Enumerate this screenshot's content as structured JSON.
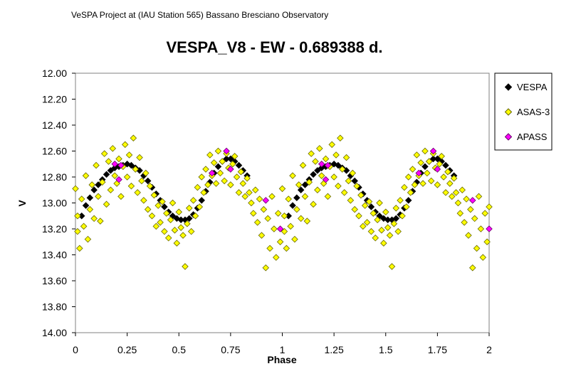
{
  "header": {
    "project": "VeSPA Project at (IAU Station 565) Bassano Bresciano Observatory"
  },
  "chart_data": {
    "type": "scatter",
    "title": "VESPA_V8 - EW - 0.689388 d.",
    "xlabel": "Phase",
    "ylabel": "V",
    "xlim": [
      0,
      2
    ],
    "ylim": [
      12.0,
      14.0
    ],
    "y_inverted": true,
    "x_ticks": [
      "0",
      "0.25",
      "0.5",
      "0.75",
      "1",
      "1.25",
      "1.5",
      "1.75",
      "2"
    ],
    "x_tick_values": [
      0,
      0.25,
      0.5,
      0.75,
      1,
      1.25,
      1.5,
      1.75,
      2
    ],
    "y_ticks": [
      "12.00",
      "12.20",
      "12.40",
      "12.60",
      "12.80",
      "13.00",
      "13.20",
      "13.40",
      "13.60",
      "13.80",
      "14.00"
    ],
    "y_tick_values": [
      12.0,
      12.2,
      12.4,
      12.6,
      12.8,
      13.0,
      13.2,
      13.4,
      13.6,
      13.8,
      14.0
    ],
    "grid": false,
    "legend_position": "right",
    "series": [
      {
        "name": "VESPA",
        "marker": "diamond",
        "color": "#000000",
        "stroke": "#000000",
        "points": [
          [
            0.03,
            13.1
          ],
          [
            0.05,
            13.02
          ],
          [
            0.07,
            12.96
          ],
          [
            0.09,
            12.9
          ],
          [
            0.11,
            12.86
          ],
          [
            0.13,
            12.82
          ],
          [
            0.15,
            12.78
          ],
          [
            0.17,
            12.75
          ],
          [
            0.19,
            12.73
          ],
          [
            0.21,
            12.72
          ],
          [
            0.23,
            12.71
          ],
          [
            0.25,
            12.7
          ],
          [
            0.27,
            12.71
          ],
          [
            0.29,
            12.73
          ],
          [
            0.31,
            12.75
          ],
          [
            0.33,
            12.79
          ],
          [
            0.35,
            12.83
          ],
          [
            0.37,
            12.88
          ],
          [
            0.39,
            12.93
          ],
          [
            0.41,
            12.98
          ],
          [
            0.43,
            13.03
          ],
          [
            0.45,
            13.07
          ],
          [
            0.47,
            13.1
          ],
          [
            0.49,
            13.12
          ],
          [
            0.51,
            13.13
          ],
          [
            0.53,
            13.13
          ],
          [
            0.55,
            13.12
          ],
          [
            0.57,
            13.09
          ],
          [
            0.59,
            13.04
          ],
          [
            0.61,
            12.98
          ],
          [
            0.63,
            12.91
          ],
          [
            0.65,
            12.84
          ],
          [
            0.67,
            12.77
          ],
          [
            0.69,
            12.72
          ],
          [
            0.71,
            12.68
          ],
          [
            0.73,
            12.66
          ],
          [
            0.75,
            12.66
          ],
          [
            0.77,
            12.68
          ],
          [
            0.79,
            12.71
          ],
          [
            0.81,
            12.75
          ],
          [
            0.83,
            12.79
          ],
          [
            1.03,
            13.1
          ],
          [
            1.05,
            13.02
          ],
          [
            1.07,
            12.96
          ],
          [
            1.09,
            12.9
          ],
          [
            1.11,
            12.86
          ],
          [
            1.13,
            12.82
          ],
          [
            1.15,
            12.78
          ],
          [
            1.17,
            12.75
          ],
          [
            1.19,
            12.73
          ],
          [
            1.21,
            12.72
          ],
          [
            1.23,
            12.71
          ],
          [
            1.25,
            12.7
          ],
          [
            1.27,
            12.71
          ],
          [
            1.29,
            12.73
          ],
          [
            1.31,
            12.75
          ],
          [
            1.33,
            12.79
          ],
          [
            1.35,
            12.83
          ],
          [
            1.37,
            12.88
          ],
          [
            1.39,
            12.93
          ],
          [
            1.41,
            12.98
          ],
          [
            1.43,
            13.03
          ],
          [
            1.45,
            13.07
          ],
          [
            1.47,
            13.1
          ],
          [
            1.49,
            13.12
          ],
          [
            1.51,
            13.13
          ],
          [
            1.53,
            13.13
          ],
          [
            1.55,
            13.12
          ],
          [
            1.57,
            13.09
          ],
          [
            1.59,
            13.04
          ],
          [
            1.61,
            12.98
          ],
          [
            1.63,
            12.91
          ],
          [
            1.65,
            12.84
          ],
          [
            1.67,
            12.77
          ],
          [
            1.69,
            12.72
          ],
          [
            1.71,
            12.68
          ],
          [
            1.73,
            12.66
          ],
          [
            1.75,
            12.66
          ],
          [
            1.77,
            12.68
          ],
          [
            1.79,
            12.71
          ],
          [
            1.81,
            12.75
          ],
          [
            1.83,
            12.79
          ]
        ]
      },
      {
        "name": "ASAS-3",
        "marker": "diamond",
        "color": "#ffff00",
        "stroke": "#666600",
        "points": [
          [
            0.0,
            12.89
          ],
          [
            0.01,
            13.1
          ],
          [
            0.01,
            13.22
          ],
          [
            0.02,
            13.35
          ],
          [
            0.03,
            12.97
          ],
          [
            0.04,
            13.18
          ],
          [
            0.05,
            12.79
          ],
          [
            0.06,
            13.28
          ],
          [
            0.07,
            13.05
          ],
          [
            0.08,
            12.86
          ],
          [
            0.09,
            13.12
          ],
          [
            0.1,
            12.71
          ],
          [
            0.11,
            12.95
          ],
          [
            0.12,
            13.14
          ],
          [
            0.13,
            12.84
          ],
          [
            0.14,
            12.62
          ],
          [
            0.15,
            13.01
          ],
          [
            0.16,
            12.68
          ],
          [
            0.17,
            12.9
          ],
          [
            0.18,
            12.58
          ],
          [
            0.19,
            12.79
          ],
          [
            0.2,
            12.85
          ],
          [
            0.21,
            12.66
          ],
          [
            0.22,
            12.95
          ],
          [
            0.23,
            12.72
          ],
          [
            0.24,
            12.55
          ],
          [
            0.25,
            12.8
          ],
          [
            0.26,
            12.63
          ],
          [
            0.27,
            12.87
          ],
          [
            0.28,
            12.5
          ],
          [
            0.29,
            12.74
          ],
          [
            0.3,
            12.92
          ],
          [
            0.31,
            12.65
          ],
          [
            0.32,
            12.83
          ],
          [
            0.33,
            12.98
          ],
          [
            0.34,
            12.77
          ],
          [
            0.35,
            13.05
          ],
          [
            0.36,
            12.87
          ],
          [
            0.37,
            13.1
          ],
          [
            0.38,
            12.94
          ],
          [
            0.39,
            13.18
          ],
          [
            0.4,
            13.02
          ],
          [
            0.41,
            13.15
          ],
          [
            0.42,
            12.99
          ],
          [
            0.43,
            13.22
          ],
          [
            0.44,
            13.08
          ],
          [
            0.45,
            13.27
          ],
          [
            0.46,
            13.13
          ],
          [
            0.47,
            13.0
          ],
          [
            0.48,
            13.21
          ],
          [
            0.49,
            13.31
          ],
          [
            0.5,
            13.07
          ],
          [
            0.51,
            13.19
          ],
          [
            0.52,
            13.25
          ],
          [
            0.53,
            13.49
          ],
          [
            0.54,
            13.16
          ],
          [
            0.55,
            13.04
          ],
          [
            0.56,
            13.22
          ],
          [
            0.57,
            12.98
          ],
          [
            0.58,
            13.1
          ],
          [
            0.59,
            12.88
          ],
          [
            0.6,
            13.03
          ],
          [
            0.61,
            12.8
          ],
          [
            0.62,
            12.92
          ],
          [
            0.63,
            12.74
          ],
          [
            0.64,
            12.86
          ],
          [
            0.65,
            12.63
          ],
          [
            0.66,
            12.79
          ],
          [
            0.67,
            12.69
          ],
          [
            0.68,
            12.85
          ],
          [
            0.69,
            12.6
          ],
          [
            0.7,
            12.77
          ],
          [
            0.71,
            12.68
          ],
          [
            0.72,
            12.83
          ],
          [
            0.73,
            12.62
          ],
          [
            0.74,
            12.73
          ],
          [
            0.75,
            12.86
          ],
          [
            0.76,
            12.7
          ],
          [
            0.77,
            12.64
          ],
          [
            0.78,
            12.8
          ],
          [
            0.79,
            12.92
          ],
          [
            0.8,
            12.76
          ],
          [
            0.81,
            12.85
          ],
          [
            0.82,
            12.95
          ],
          [
            0.83,
            12.81
          ],
          [
            0.84,
            12.92
          ],
          [
            0.85,
            13.0
          ],
          [
            0.86,
            13.08
          ],
          [
            0.87,
            12.9
          ],
          [
            0.88,
            13.15
          ],
          [
            0.89,
            12.97
          ],
          [
            0.9,
            13.25
          ],
          [
            0.91,
            13.05
          ],
          [
            0.92,
            13.5
          ],
          [
            0.93,
            13.12
          ],
          [
            0.94,
            13.35
          ],
          [
            0.95,
            12.95
          ],
          [
            0.96,
            13.2
          ],
          [
            0.97,
            13.42
          ],
          [
            0.98,
            13.08
          ],
          [
            0.99,
            13.3
          ],
          [
            1.0,
            12.89
          ],
          [
            1.01,
            13.1
          ],
          [
            1.01,
            13.22
          ],
          [
            1.02,
            13.35
          ],
          [
            1.03,
            12.97
          ],
          [
            1.04,
            13.18
          ],
          [
            1.05,
            12.79
          ],
          [
            1.06,
            13.28
          ],
          [
            1.07,
            13.05
          ],
          [
            1.08,
            12.86
          ],
          [
            1.09,
            13.12
          ],
          [
            1.1,
            12.71
          ],
          [
            1.11,
            12.95
          ],
          [
            1.12,
            13.14
          ],
          [
            1.13,
            12.84
          ],
          [
            1.14,
            12.62
          ],
          [
            1.15,
            13.01
          ],
          [
            1.16,
            12.68
          ],
          [
            1.17,
            12.9
          ],
          [
            1.18,
            12.58
          ],
          [
            1.19,
            12.79
          ],
          [
            1.2,
            12.85
          ],
          [
            1.21,
            12.66
          ],
          [
            1.22,
            12.95
          ],
          [
            1.23,
            12.72
          ],
          [
            1.24,
            12.55
          ],
          [
            1.25,
            12.8
          ],
          [
            1.26,
            12.63
          ],
          [
            1.27,
            12.87
          ],
          [
            1.28,
            12.5
          ],
          [
            1.29,
            12.74
          ],
          [
            1.3,
            12.92
          ],
          [
            1.31,
            12.65
          ],
          [
            1.32,
            12.83
          ],
          [
            1.33,
            12.98
          ],
          [
            1.34,
            12.77
          ],
          [
            1.35,
            13.05
          ],
          [
            1.36,
            12.87
          ],
          [
            1.37,
            13.1
          ],
          [
            1.38,
            12.94
          ],
          [
            1.39,
            13.18
          ],
          [
            1.4,
            13.02
          ],
          [
            1.41,
            13.15
          ],
          [
            1.42,
            12.99
          ],
          [
            1.43,
            13.22
          ],
          [
            1.44,
            13.08
          ],
          [
            1.45,
            13.27
          ],
          [
            1.46,
            13.13
          ],
          [
            1.47,
            13.0
          ],
          [
            1.48,
            13.21
          ],
          [
            1.49,
            13.31
          ],
          [
            1.5,
            13.07
          ],
          [
            1.51,
            13.19
          ],
          [
            1.52,
            13.25
          ],
          [
            1.53,
            13.49
          ],
          [
            1.54,
            13.16
          ],
          [
            1.55,
            13.04
          ],
          [
            1.56,
            13.22
          ],
          [
            1.57,
            12.98
          ],
          [
            1.58,
            13.1
          ],
          [
            1.59,
            12.88
          ],
          [
            1.6,
            13.03
          ],
          [
            1.61,
            12.8
          ],
          [
            1.62,
            12.92
          ],
          [
            1.63,
            12.74
          ],
          [
            1.64,
            12.86
          ],
          [
            1.65,
            12.63
          ],
          [
            1.66,
            12.79
          ],
          [
            1.67,
            12.69
          ],
          [
            1.68,
            12.85
          ],
          [
            1.69,
            12.6
          ],
          [
            1.7,
            12.77
          ],
          [
            1.71,
            12.68
          ],
          [
            1.72,
            12.83
          ],
          [
            1.73,
            12.62
          ],
          [
            1.74,
            12.73
          ],
          [
            1.75,
            12.86
          ],
          [
            1.76,
            12.7
          ],
          [
            1.77,
            12.64
          ],
          [
            1.78,
            12.8
          ],
          [
            1.79,
            12.92
          ],
          [
            1.8,
            12.76
          ],
          [
            1.81,
            12.85
          ],
          [
            1.82,
            12.95
          ],
          [
            1.83,
            12.81
          ],
          [
            1.84,
            12.92
          ],
          [
            1.85,
            13.0
          ],
          [
            1.86,
            13.08
          ],
          [
            1.87,
            12.9
          ],
          [
            1.88,
            13.15
          ],
          [
            1.89,
            12.97
          ],
          [
            1.9,
            13.25
          ],
          [
            1.91,
            13.05
          ],
          [
            1.92,
            13.5
          ],
          [
            1.93,
            13.12
          ],
          [
            1.94,
            13.35
          ],
          [
            1.95,
            12.95
          ],
          [
            1.96,
            13.2
          ],
          [
            1.97,
            13.42
          ],
          [
            1.98,
            13.08
          ],
          [
            1.99,
            13.3
          ],
          [
            2.0,
            13.03
          ]
        ]
      },
      {
        "name": "APASS",
        "marker": "diamond",
        "color": "#ff00ff",
        "stroke": "#660066",
        "points": [
          [
            0.19,
            12.7
          ],
          [
            0.21,
            12.82
          ],
          [
            0.22,
            12.71
          ],
          [
            0.66,
            12.77
          ],
          [
            0.73,
            12.6
          ],
          [
            0.75,
            12.74
          ],
          [
            0.92,
            12.98
          ],
          [
            0.99,
            13.2
          ],
          [
            1.19,
            12.7
          ],
          [
            1.21,
            12.82
          ],
          [
            1.22,
            12.71
          ],
          [
            1.66,
            12.77
          ],
          [
            1.73,
            12.6
          ],
          [
            1.75,
            12.74
          ],
          [
            1.92,
            12.98
          ],
          [
            2.0,
            13.2
          ]
        ]
      }
    ]
  }
}
